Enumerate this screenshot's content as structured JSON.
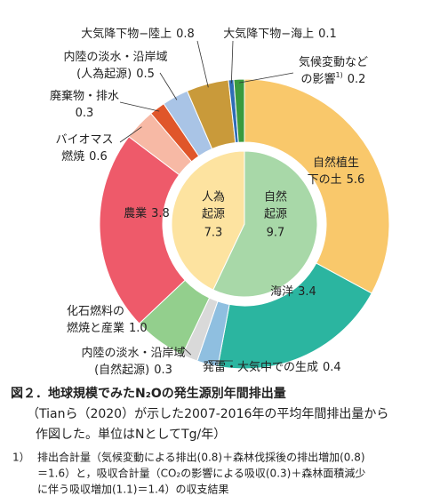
{
  "chart_data": {
    "type": "donut",
    "outer": {
      "labels": [
        [
          "自然植生",
          "下の土"
        ],
        [
          "海洋"
        ],
        [
          "発雷・大気中での生成"
        ],
        [
          "内陸の淡水・沿岸域",
          "(自然起源)"
        ],
        [
          "化石燃料の",
          "燃焼と産業"
        ],
        [
          "農業"
        ],
        [
          "バイオマス",
          "燃焼"
        ],
        [
          "廃棄物・排水",
          ""
        ],
        [
          "内陸の淡水・沿岸域",
          "(人為起源)"
        ],
        [
          "大気降下物−陸上"
        ],
        [
          "大気降下物−海上"
        ],
        [
          "気候変動など",
          "の影響"
        ]
      ],
      "values": [
        5.6,
        3.4,
        0.4,
        0.3,
        1.0,
        3.8,
        0.6,
        0.3,
        0.5,
        0.8,
        0.1,
        0.2
      ],
      "value_labels": [
        "5.6",
        "3.4",
        "0.4",
        "0.3",
        "1.0",
        "3.8",
        "0.6",
        "0.3",
        "0.5",
        "0.8",
        "0.1",
        "0.2"
      ],
      "colors": [
        "#f9c86b",
        "#2bb5a0",
        "#8fbfe0",
        "#d9d9d9",
        "#93cf8d",
        "#ee5a6a",
        "#f7b9a5",
        "#e0562a",
        "#a9c4e6",
        "#c99a3a",
        "#2f6db5",
        "#3a9a3e"
      ]
    },
    "inner": {
      "labels": [
        [
          "自然",
          "起源"
        ],
        [
          "人為",
          "起源"
        ]
      ],
      "values": [
        9.7,
        7.3
      ],
      "colors": [
        "#a8d8a8",
        "#fde3a0"
      ]
    },
    "note_mark": "1)",
    "caption": [
      "図２．地球規模でみたN₂Oの発生源別年間排出量",
      "（Tianら（2020）が示した2007-2016年の平均年間排出量から",
      "作図した。単位はNとしてTg/年）"
    ],
    "footnote": {
      "mark": "1）",
      "lines": [
        "排出合計量（気候変動による排出(0.8)＋森林伐採後の排出増加(0.8)",
        "＝1.6）と，吸収合計量（CO₂の影響による吸収(0.3)＋森林面積減少",
        "に伴う吸収増加(1.1)＝1.4）の収支結果"
      ]
    }
  }
}
